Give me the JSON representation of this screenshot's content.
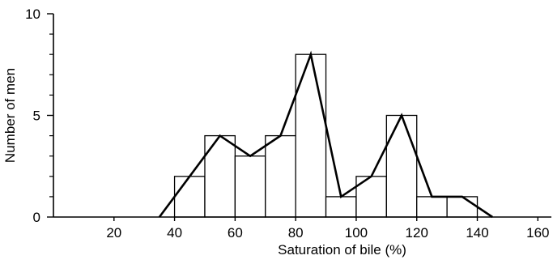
{
  "chart_data": {
    "type": "bar",
    "title": "",
    "xlabel": "Saturation of bile (%)",
    "ylabel": "Number of men",
    "xlim": [
      0,
      165
    ],
    "ylim": [
      0,
      10
    ],
    "x_ticks": [
      20,
      40,
      60,
      80,
      100,
      120,
      140,
      160
    ],
    "y_ticks": [
      0,
      5,
      10
    ],
    "y_minor_ticks": [
      1,
      2,
      3,
      4,
      6,
      7,
      8,
      9
    ],
    "bin_width": 10,
    "histogram": {
      "bin_starts": [
        40,
        50,
        60,
        70,
        80,
        90,
        100,
        110,
        120,
        130
      ],
      "values": [
        2,
        4,
        3,
        4,
        8,
        1,
        2,
        5,
        1,
        1
      ]
    },
    "frequency_polygon": {
      "x": [
        35,
        55,
        65,
        75,
        85,
        95,
        105,
        115,
        125,
        135,
        145
      ],
      "y": [
        0,
        4,
        3,
        4,
        8,
        1,
        2,
        5,
        1,
        1,
        0
      ]
    },
    "grid": false,
    "legend": "none"
  }
}
